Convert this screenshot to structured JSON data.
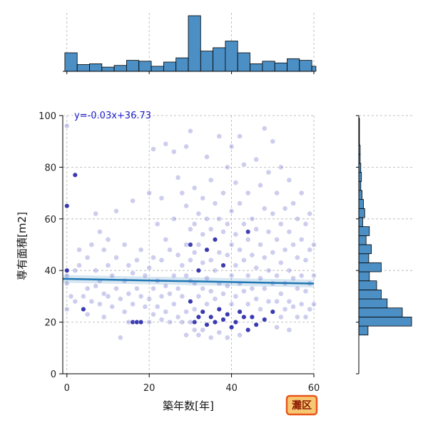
{
  "chart_data": {
    "type": "scatter",
    "xlabel": "築年数[年]",
    "ylabel": "専有面積[m2]",
    "xlim": [
      -1,
      60
    ],
    "ylim": [
      0,
      100
    ],
    "x_ticks": [
      0,
      20,
      40,
      60
    ],
    "y_ticks": [
      0,
      20,
      40,
      60,
      80,
      100
    ],
    "grid": true,
    "regression": {
      "slope": -0.03,
      "intercept": 36.73,
      "label": "y=-0.03x+36.73",
      "color": "#1f77b4"
    },
    "badge": {
      "text": "灘区",
      "bg": "#f7c873",
      "border": "#e8561c",
      "color": "#8b1a00"
    },
    "point_color": "#5a5ac8",
    "dark_point_color": "#2020a8",
    "points": [
      [
        0,
        96
      ],
      [
        0,
        65
      ],
      [
        0,
        40
      ],
      [
        0,
        35
      ],
      [
        0,
        25
      ],
      [
        0,
        38
      ],
      [
        1,
        30
      ],
      [
        2,
        77
      ],
      [
        2,
        40
      ],
      [
        2,
        28
      ],
      [
        3,
        48
      ],
      [
        3,
        42
      ],
      [
        4,
        30
      ],
      [
        4,
        25
      ],
      [
        5,
        45
      ],
      [
        5,
        33
      ],
      [
        5,
        23
      ],
      [
        6,
        50
      ],
      [
        6,
        28
      ],
      [
        7,
        62
      ],
      [
        7,
        40
      ],
      [
        7,
        34
      ],
      [
        8,
        55
      ],
      [
        8,
        36
      ],
      [
        8,
        27
      ],
      [
        9,
        48
      ],
      [
        9,
        31
      ],
      [
        9,
        22
      ],
      [
        10,
        52
      ],
      [
        10,
        42
      ],
      [
        10,
        30
      ],
      [
        11,
        38
      ],
      [
        11,
        26
      ],
      [
        12,
        63
      ],
      [
        12,
        45
      ],
      [
        12,
        33
      ],
      [
        13,
        29
      ],
      [
        13,
        14
      ],
      [
        14,
        50
      ],
      [
        14,
        36
      ],
      [
        14,
        24
      ],
      [
        15,
        42
      ],
      [
        15,
        31
      ],
      [
        15,
        20
      ],
      [
        16,
        67
      ],
      [
        16,
        39
      ],
      [
        16,
        27
      ],
      [
        17,
        44
      ],
      [
        17,
        33
      ],
      [
        17,
        20
      ],
      [
        18,
        48
      ],
      [
        18,
        30
      ],
      [
        18,
        20
      ],
      [
        19,
        38
      ],
      [
        19,
        26
      ],
      [
        20,
        70
      ],
      [
        20,
        41
      ],
      [
        20,
        29
      ],
      [
        20,
        20
      ],
      [
        21,
        87
      ],
      [
        21,
        45
      ],
      [
        21,
        33
      ],
      [
        21,
        23
      ],
      [
        22,
        58
      ],
      [
        22,
        36
      ],
      [
        22,
        26
      ],
      [
        23,
        68
      ],
      [
        23,
        44
      ],
      [
        23,
        30
      ],
      [
        23,
        21
      ],
      [
        24,
        89
      ],
      [
        24,
        52
      ],
      [
        24,
        34
      ],
      [
        24,
        24
      ],
      [
        25,
        48
      ],
      [
        25,
        31
      ],
      [
        25,
        20
      ],
      [
        26,
        86
      ],
      [
        26,
        60
      ],
      [
        26,
        38
      ],
      [
        26,
        27
      ],
      [
        27,
        76
      ],
      [
        27,
        46
      ],
      [
        27,
        33
      ],
      [
        27,
        22
      ],
      [
        28,
        70
      ],
      [
        28,
        42
      ],
      [
        28,
        30
      ],
      [
        28,
        20
      ],
      [
        29,
        88
      ],
      [
        29,
        65
      ],
      [
        29,
        50
      ],
      [
        29,
        38
      ],
      [
        29,
        24
      ],
      [
        29,
        15
      ],
      [
        30,
        94
      ],
      [
        30,
        56
      ],
      [
        30,
        44
      ],
      [
        30,
        36
      ],
      [
        30,
        28
      ],
      [
        30,
        20
      ],
      [
        31,
        72
      ],
      [
        31,
        58
      ],
      [
        31,
        47
      ],
      [
        31,
        35
      ],
      [
        31,
        25
      ],
      [
        31,
        17
      ],
      [
        32,
        62
      ],
      [
        32,
        50
      ],
      [
        32,
        40
      ],
      [
        32,
        30
      ],
      [
        32,
        22
      ],
      [
        32,
        15
      ],
      [
        33,
        68
      ],
      [
        33,
        54
      ],
      [
        33,
        43
      ],
      [
        33,
        33
      ],
      [
        33,
        24
      ],
      [
        33,
        17
      ],
      [
        34,
        84
      ],
      [
        34,
        60
      ],
      [
        34,
        48
      ],
      [
        34,
        37
      ],
      [
        34,
        27
      ],
      [
        34,
        19
      ],
      [
        35,
        75
      ],
      [
        35,
        56
      ],
      [
        35,
        44
      ],
      [
        35,
        32
      ],
      [
        35,
        22
      ],
      [
        35,
        14
      ],
      [
        36,
        66
      ],
      [
        36,
        52
      ],
      [
        36,
        40
      ],
      [
        36,
        29
      ],
      [
        36,
        20
      ],
      [
        37,
        92
      ],
      [
        37,
        60
      ],
      [
        37,
        47
      ],
      [
        37,
        35
      ],
      [
        37,
        25
      ],
      [
        37,
        16
      ],
      [
        38,
        70
      ],
      [
        38,
        55
      ],
      [
        38,
        42
      ],
      [
        38,
        31
      ],
      [
        38,
        21
      ],
      [
        39,
        80
      ],
      [
        39,
        58
      ],
      [
        39,
        46
      ],
      [
        39,
        34
      ],
      [
        39,
        23
      ],
      [
        39,
        14
      ],
      [
        40,
        88
      ],
      [
        40,
        63
      ],
      [
        40,
        50
      ],
      [
        40,
        38
      ],
      [
        40,
        27
      ],
      [
        40,
        18
      ],
      [
        41,
        74
      ],
      [
        41,
        54
      ],
      [
        41,
        42
      ],
      [
        41,
        30
      ],
      [
        41,
        20
      ],
      [
        42,
        92
      ],
      [
        42,
        66
      ],
      [
        42,
        48
      ],
      [
        42,
        35
      ],
      [
        42,
        24
      ],
      [
        42,
        15
      ],
      [
        43,
        81
      ],
      [
        43,
        58
      ],
      [
        43,
        44
      ],
      [
        43,
        32
      ],
      [
        43,
        22
      ],
      [
        44,
        70
      ],
      [
        44,
        52
      ],
      [
        44,
        38
      ],
      [
        44,
        27
      ],
      [
        44,
        17
      ],
      [
        45,
        60
      ],
      [
        45,
        46
      ],
      [
        45,
        33
      ],
      [
        45,
        22
      ],
      [
        46,
        83
      ],
      [
        46,
        56
      ],
      [
        46,
        41
      ],
      [
        46,
        29
      ],
      [
        46,
        19
      ],
      [
        47,
        73
      ],
      [
        47,
        50
      ],
      [
        47,
        37
      ],
      [
        47,
        25
      ],
      [
        48,
        95
      ],
      [
        48,
        64
      ],
      [
        48,
        45
      ],
      [
        48,
        33
      ],
      [
        48,
        21
      ],
      [
        49,
        78
      ],
      [
        49,
        55
      ],
      [
        49,
        40
      ],
      [
        49,
        28
      ],
      [
        50,
        90
      ],
      [
        50,
        62
      ],
      [
        50,
        47
      ],
      [
        50,
        35
      ],
      [
        50,
        24
      ],
      [
        51,
        70
      ],
      [
        51,
        52
      ],
      [
        51,
        38
      ],
      [
        51,
        28
      ],
      [
        51,
        18
      ],
      [
        52,
        80
      ],
      [
        52,
        58
      ],
      [
        52,
        43
      ],
      [
        52,
        31
      ],
      [
        52,
        22
      ],
      [
        53,
        64
      ],
      [
        53,
        48
      ],
      [
        53,
        35
      ],
      [
        53,
        25
      ],
      [
        54,
        75
      ],
      [
        54,
        55
      ],
      [
        54,
        40
      ],
      [
        54,
        28
      ],
      [
        54,
        17
      ],
      [
        55,
        66
      ],
      [
        55,
        50
      ],
      [
        55,
        37
      ],
      [
        55,
        26
      ],
      [
        56,
        60
      ],
      [
        56,
        45
      ],
      [
        56,
        33
      ],
      [
        56,
        22
      ],
      [
        57,
        70
      ],
      [
        57,
        52
      ],
      [
        57,
        38
      ],
      [
        57,
        27
      ],
      [
        58,
        58
      ],
      [
        58,
        44
      ],
      [
        58,
        32
      ],
      [
        58,
        22
      ],
      [
        59,
        62
      ],
      [
        59,
        48
      ],
      [
        59,
        35
      ],
      [
        59,
        25
      ],
      [
        60,
        50
      ],
      [
        60,
        38
      ],
      [
        60,
        27
      ]
    ],
    "dark_points": [
      [
        0,
        65
      ],
      [
        0,
        40
      ],
      [
        2,
        77
      ],
      [
        4,
        25
      ],
      [
        16,
        20
      ],
      [
        17,
        20
      ],
      [
        18,
        20
      ],
      [
        30,
        28
      ],
      [
        31,
        20
      ],
      [
        32,
        22
      ],
      [
        33,
        24
      ],
      [
        34,
        19
      ],
      [
        35,
        22
      ],
      [
        36,
        20
      ],
      [
        37,
        25
      ],
      [
        38,
        21
      ],
      [
        39,
        23
      ],
      [
        40,
        18
      ],
      [
        41,
        20
      ],
      [
        42,
        24
      ],
      [
        43,
        22
      ],
      [
        44,
        17
      ],
      [
        45,
        22
      ],
      [
        46,
        19
      ],
      [
        30,
        50
      ],
      [
        32,
        40
      ],
      [
        34,
        48
      ],
      [
        36,
        52
      ],
      [
        38,
        42
      ],
      [
        44,
        55
      ],
      [
        48,
        21
      ],
      [
        50,
        24
      ]
    ],
    "top_hist": {
      "bin_edges": [
        -0.5,
        2.5,
        5.5,
        8.5,
        11.5,
        14.5,
        17.5,
        20.5,
        23.5,
        26.5,
        29.5,
        32.5,
        35.5,
        38.5,
        41.5,
        44.5,
        47.5,
        50.5,
        53.5,
        56.5,
        59.5,
        60.5
      ],
      "counts": [
        22,
        8,
        9,
        5,
        7,
        13,
        12,
        6,
        11,
        16,
        66,
        24,
        28,
        36,
        22,
        9,
        12,
        10,
        15,
        13,
        6
      ],
      "color": "#4c8fc4"
    },
    "right_hist": {
      "bin_edges": [
        15,
        18.5,
        22,
        25.5,
        29,
        32.5,
        36,
        39.5,
        43,
        46.5,
        50,
        53.5,
        57,
        60.5,
        64,
        67.5,
        71,
        74.5,
        78,
        81.5,
        85,
        88.5,
        92,
        95.5,
        99
      ],
      "counts": [
        14,
        80,
        66,
        43,
        34,
        27,
        16,
        34,
        15,
        19,
        11,
        16,
        6,
        9,
        7,
        5,
        3,
        4,
        3,
        2,
        2,
        1,
        1,
        1
      ],
      "color": "#4c8fc4"
    }
  }
}
